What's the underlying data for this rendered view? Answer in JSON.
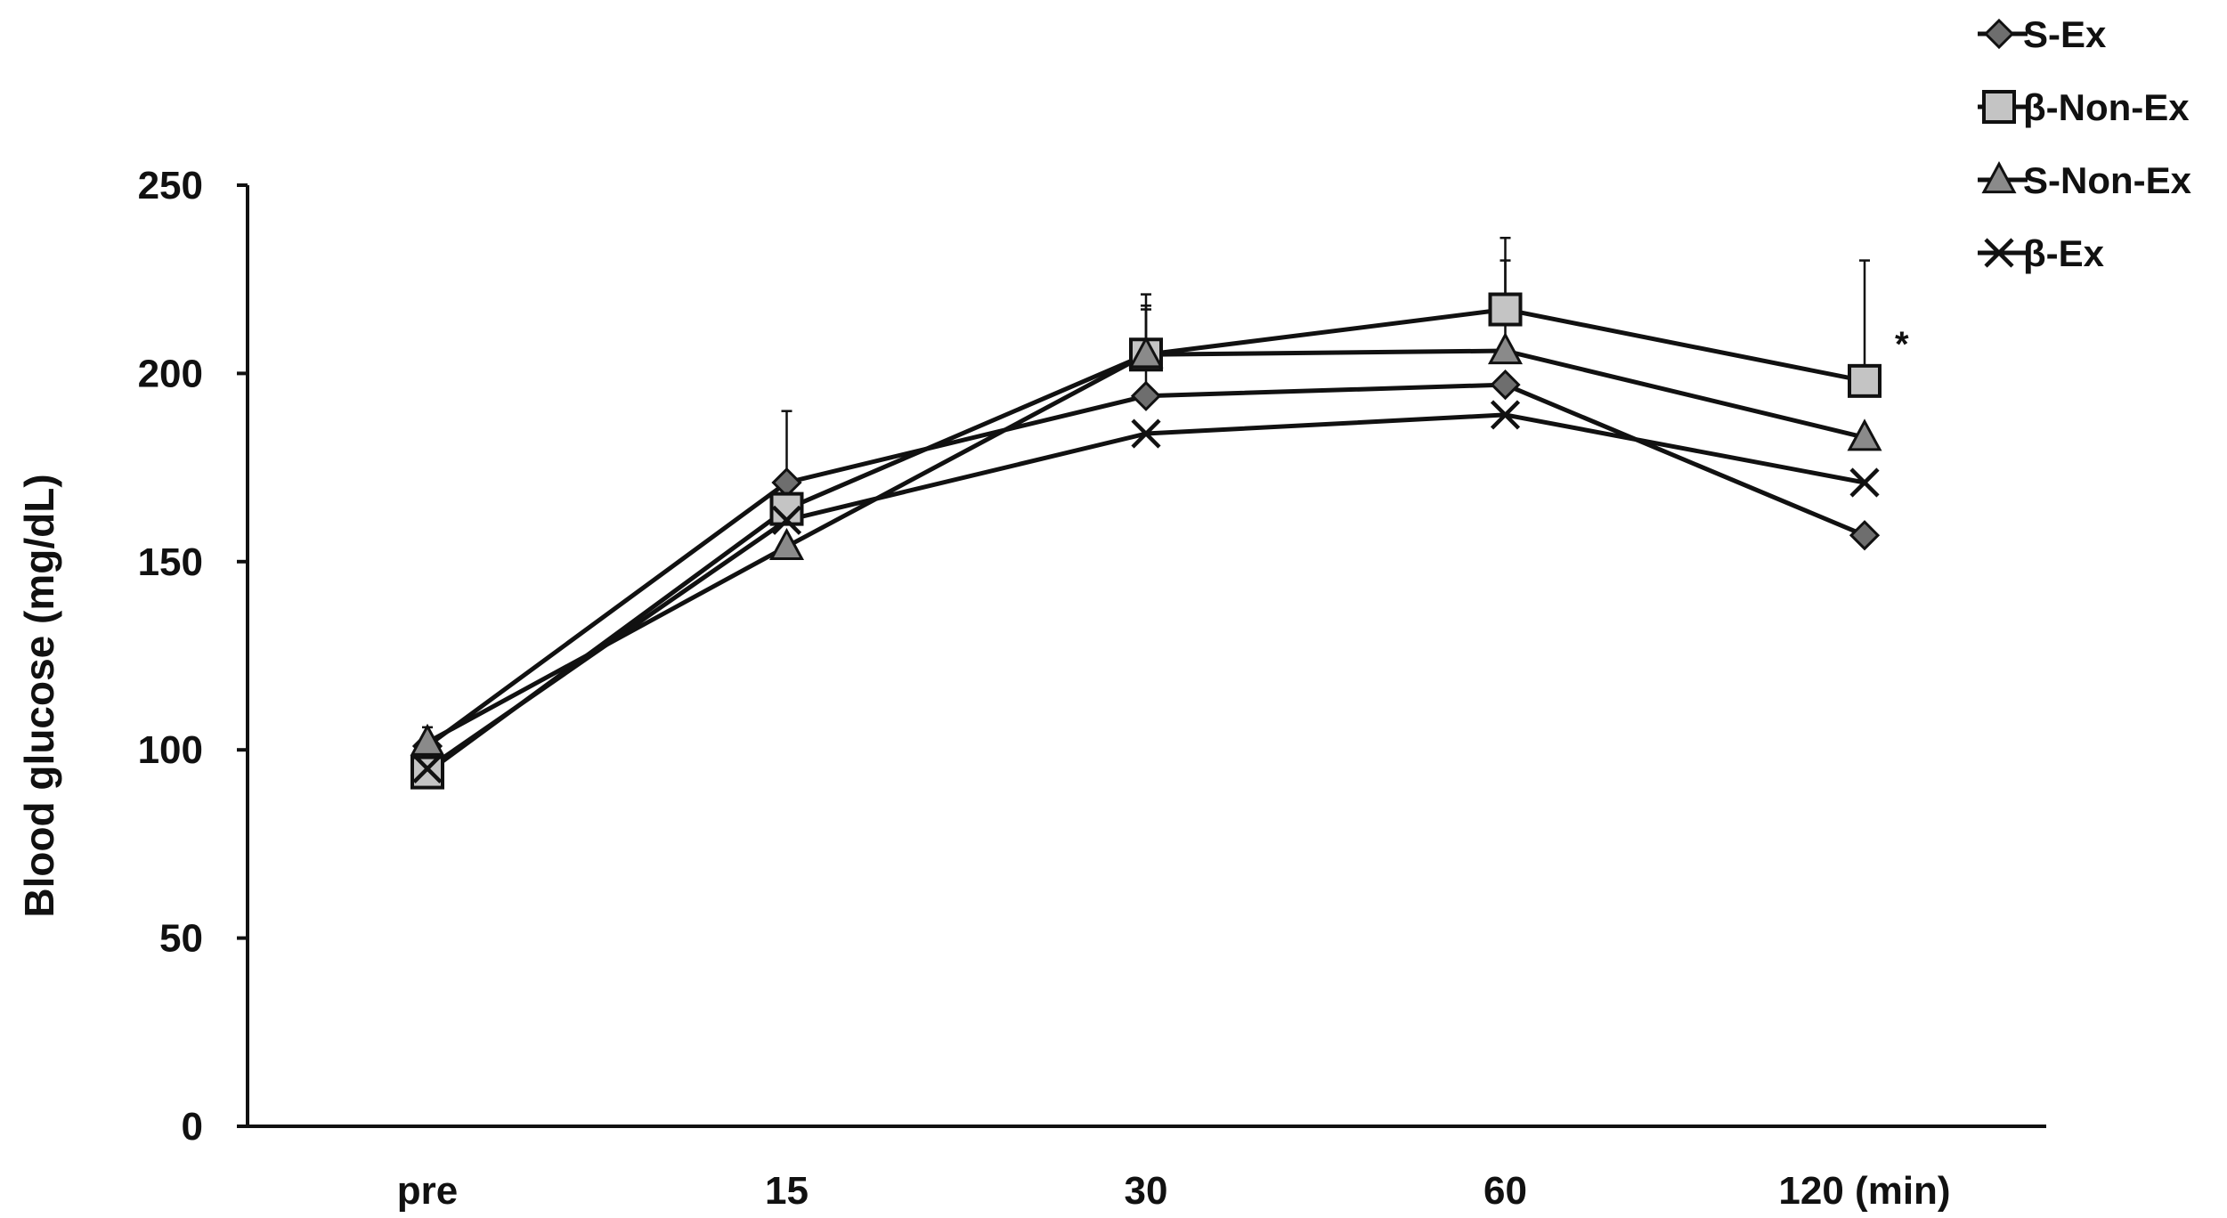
{
  "chart_data": {
    "type": "line",
    "title": "",
    "xlabel": "",
    "ylabel": "Blood glucose (mg/dL)",
    "categories": [
      "pre",
      "15",
      "30",
      "60",
      "120 (min)"
    ],
    "ylim": [
      0,
      250
    ],
    "yticks": [
      0,
      50,
      100,
      150,
      200,
      250
    ],
    "grid": false,
    "legend_position": "top-right",
    "series": [
      {
        "name": "S-Ex",
        "marker": "diamond",
        "values": [
          101,
          171,
          194,
          197,
          157
        ],
        "errors": [
          null,
          19,
          23,
          null,
          null
        ]
      },
      {
        "name": "β-Non-Ex",
        "marker": "square",
        "values": [
          94,
          164,
          205,
          217,
          198
        ],
        "errors": [
          null,
          null,
          16,
          19,
          32
        ]
      },
      {
        "name": "S-Non-Ex",
        "marker": "triangle",
        "values": [
          102,
          154,
          205,
          206,
          183
        ],
        "errors": [
          4,
          null,
          13,
          24,
          null
        ]
      },
      {
        "name": "β-Ex",
        "marker": "x",
        "values": [
          95,
          161,
          184,
          189,
          171
        ],
        "errors": [
          null,
          null,
          null,
          null,
          null
        ]
      }
    ],
    "annotations": [
      {
        "text": "*",
        "category": "120 (min)",
        "series": "β-Non-Ex"
      }
    ]
  }
}
